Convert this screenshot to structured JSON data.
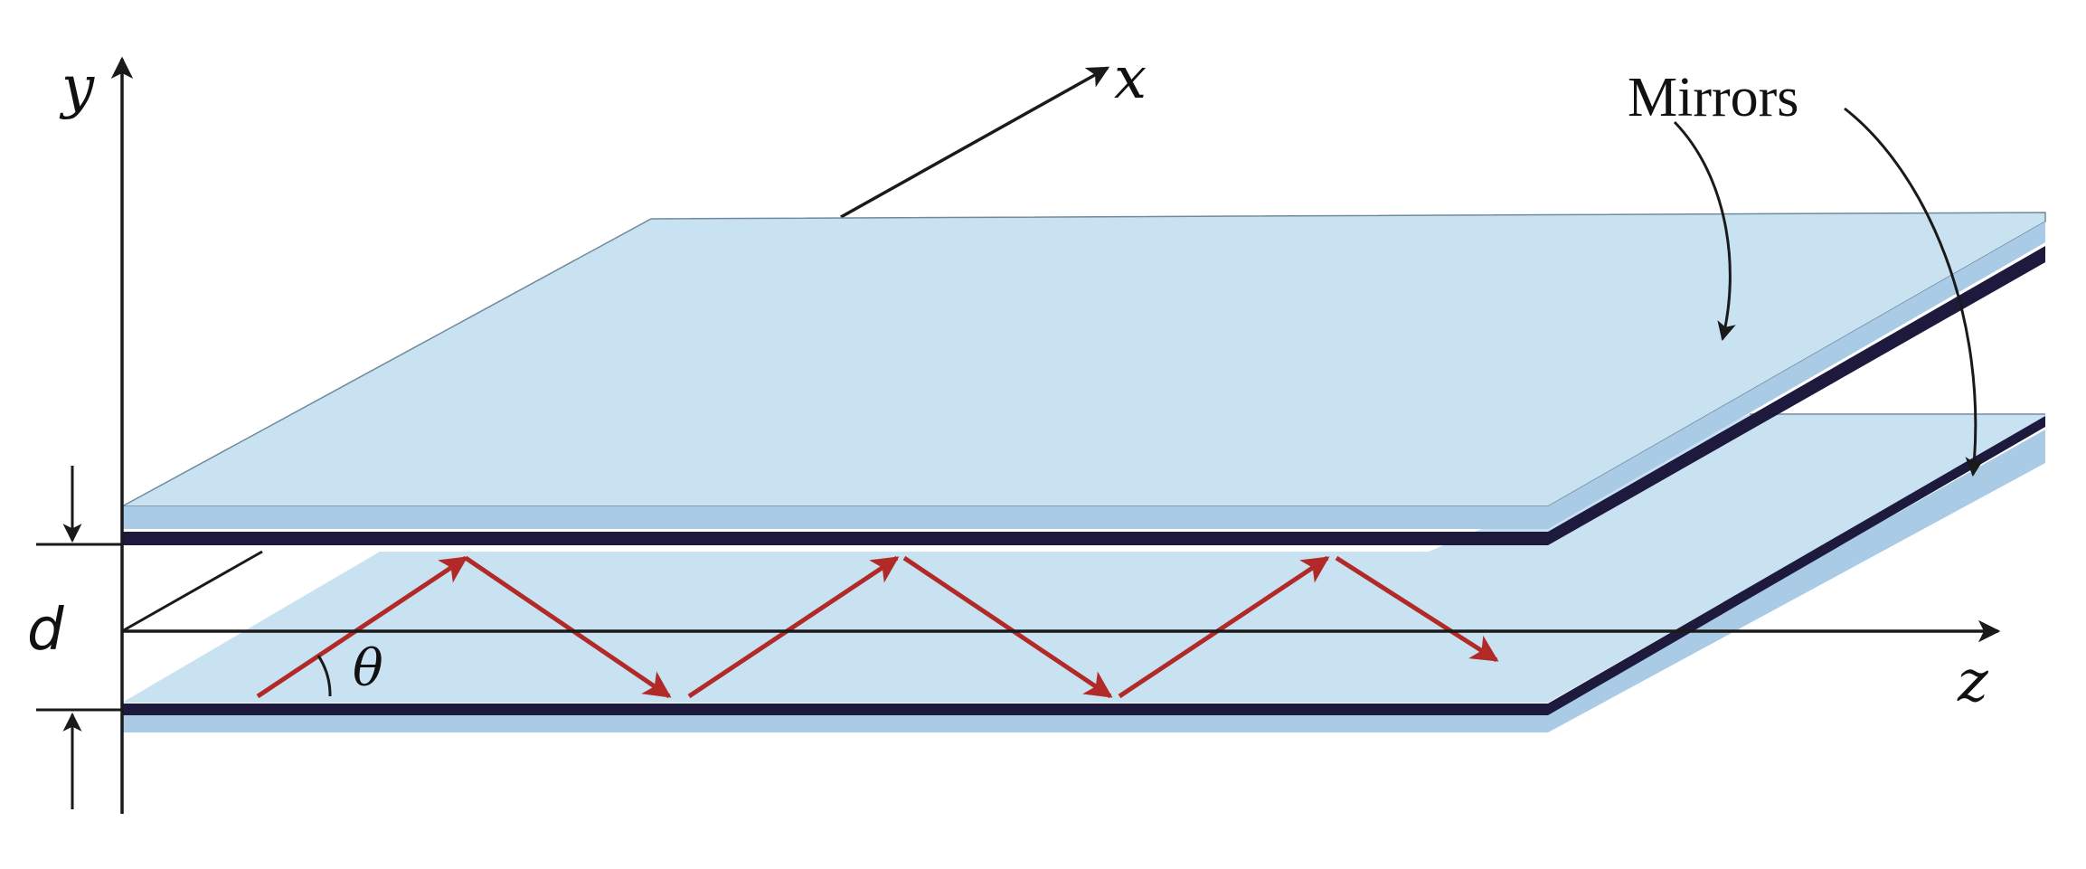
{
  "labels": {
    "x_axis": "x",
    "y_axis": "y",
    "z_axis": "z",
    "separation": "d",
    "angle": "θ",
    "mirrors": "Mirrors"
  },
  "colors": {
    "mirror_face": "#c9e2f2",
    "mirror_edge": "#1d1a3d",
    "mirror_shadow": "#a9cbe6",
    "ray": "#b22a28",
    "axis": "#1a1a1a"
  }
}
